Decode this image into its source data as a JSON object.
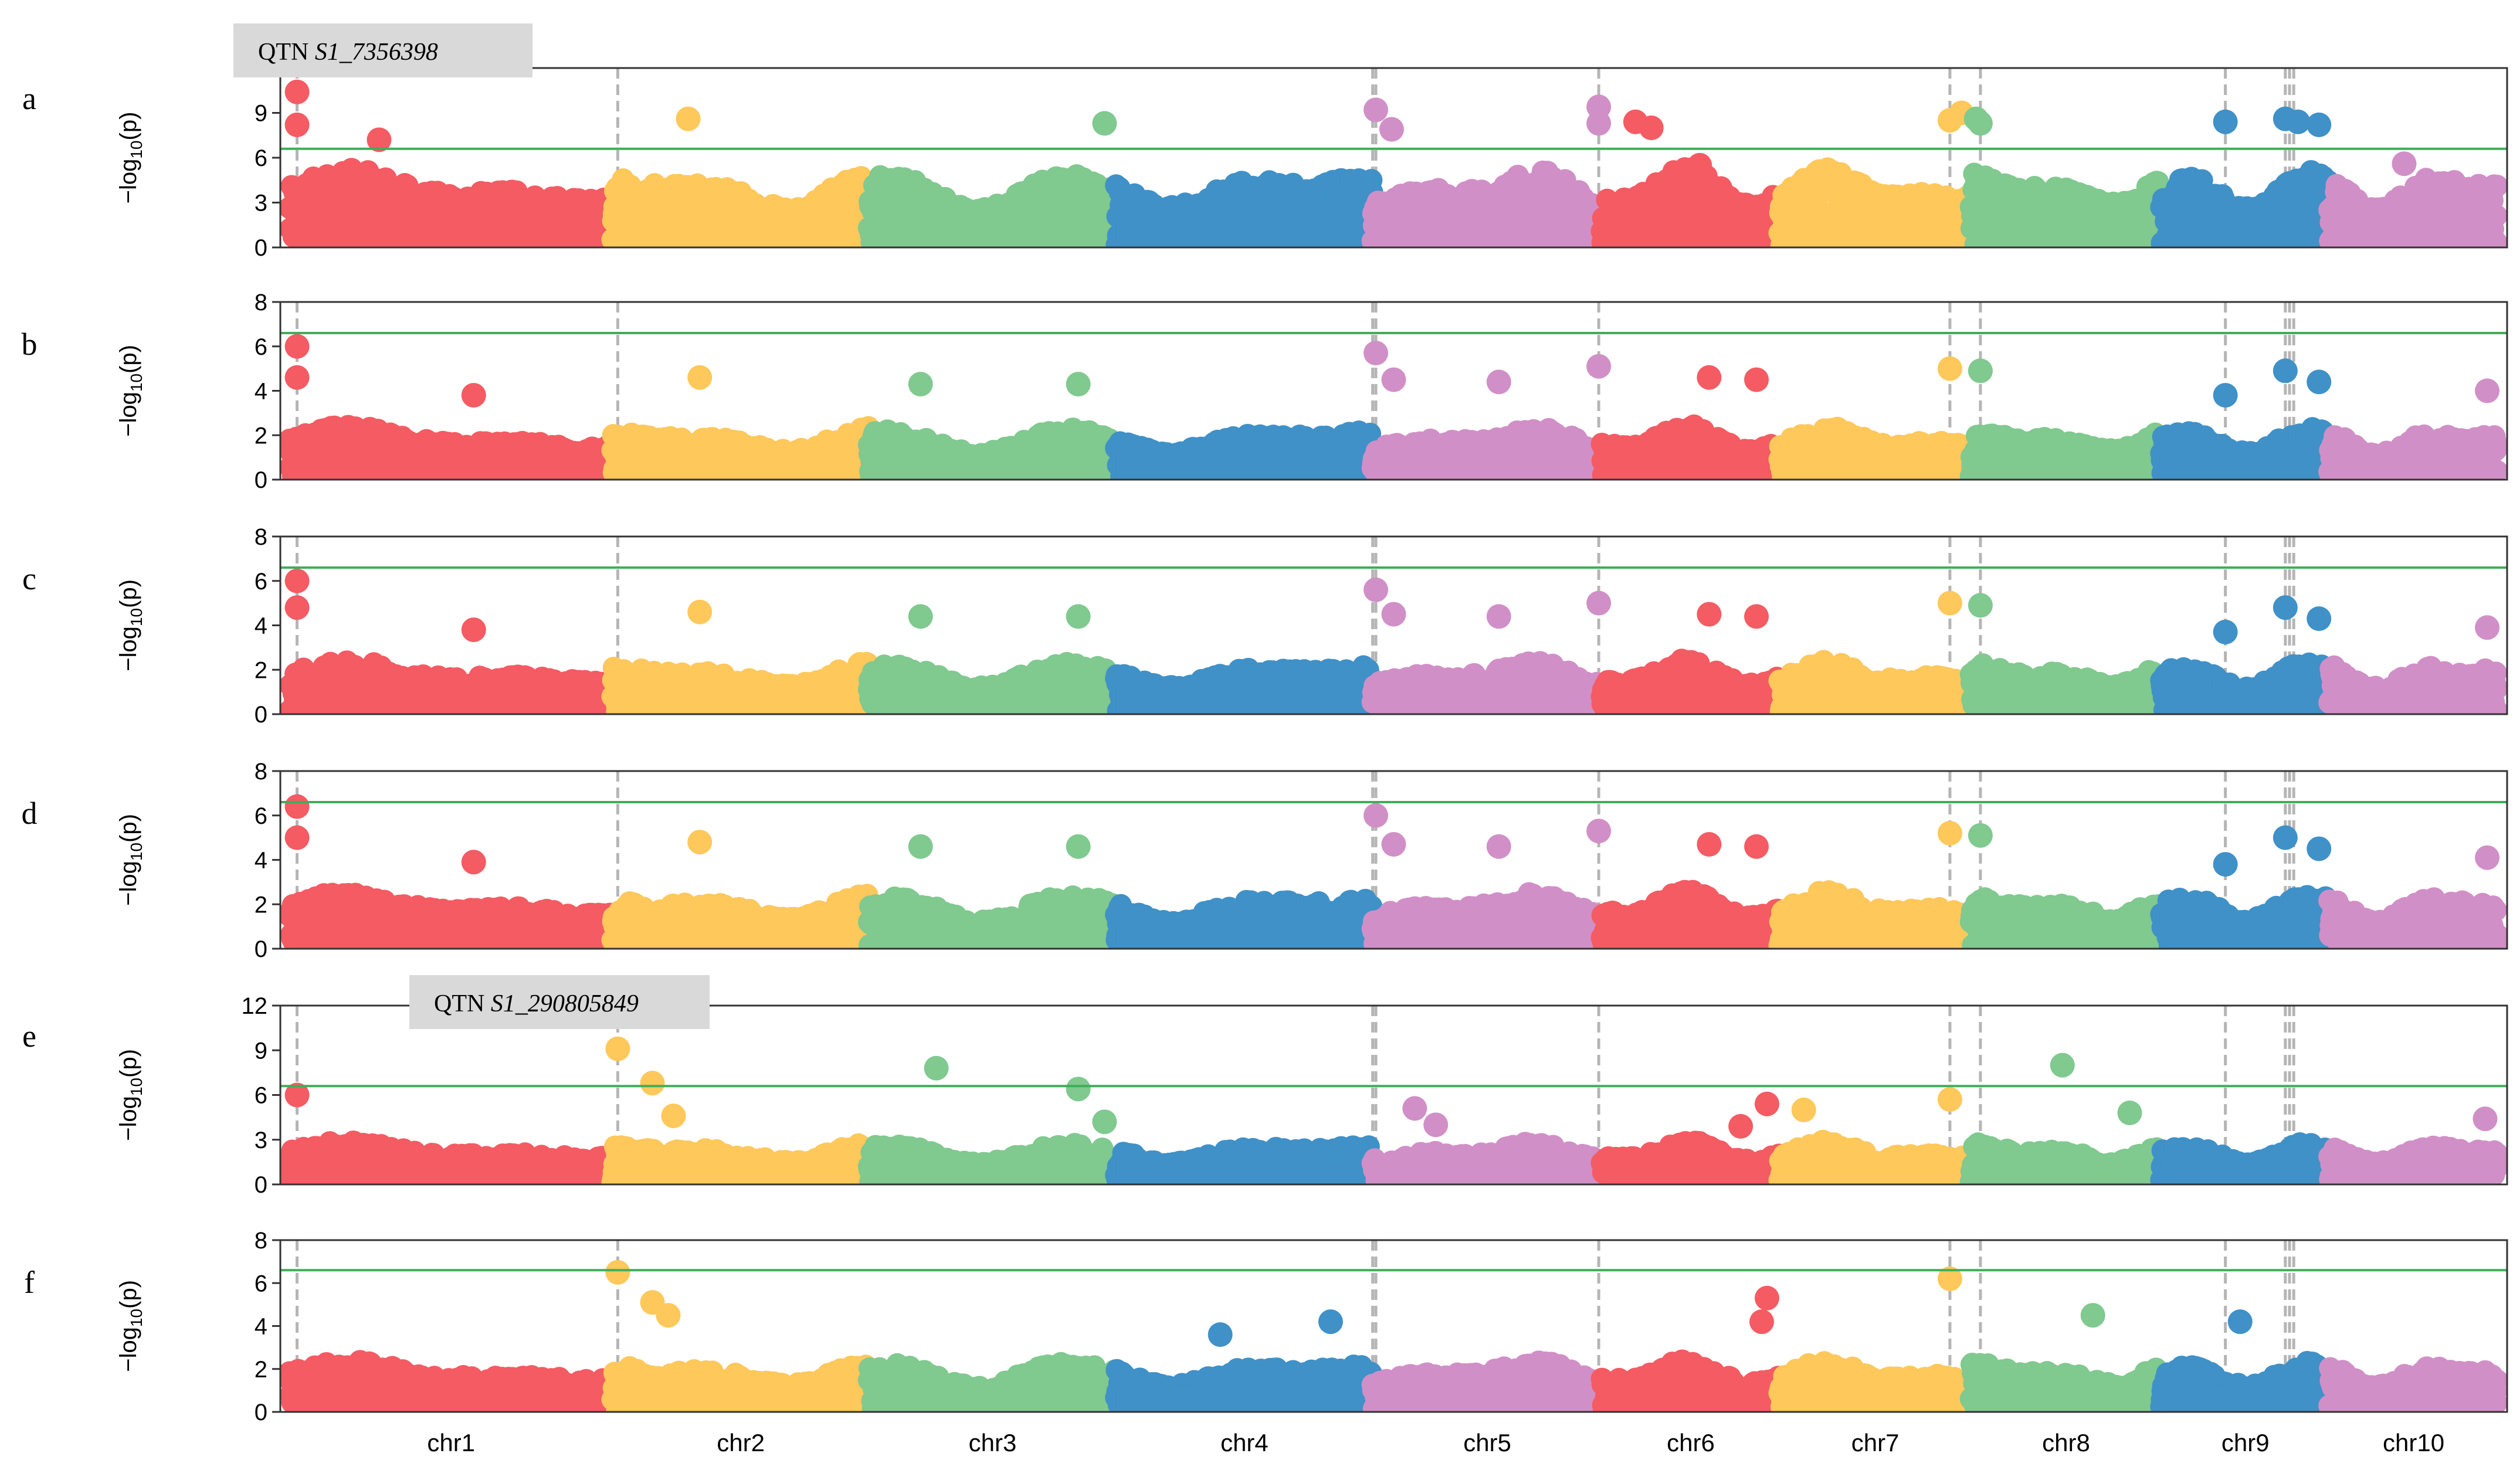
{
  "chart_data": {
    "type": "scatter",
    "subtype": "manhattan",
    "xlabel": "",
    "ylabel_prefix": "−log",
    "ylabel_sub": "10",
    "ylabel_suffix": "(p)",
    "colors": {
      "red": "#f45b63",
      "yellow": "#fec85a",
      "green": "#80c98f",
      "blue": "#3f91c8",
      "pink": "#d18fc7",
      "threshold": "#3fae5a",
      "qtn_line": "#b5b5b5",
      "qtn_box": "#d9d9d9"
    },
    "chromosomes": [
      {
        "name": "chr1",
        "start": 0,
        "end": 307,
        "color": "red"
      },
      {
        "name": "chr2",
        "start": 307,
        "end": 551,
        "color": "yellow"
      },
      {
        "name": "chr3",
        "start": 551,
        "end": 786,
        "color": "green"
      },
      {
        "name": "chr4",
        "start": 786,
        "end": 1030,
        "color": "blue"
      },
      {
        "name": "chr5",
        "start": 1030,
        "end": 1248,
        "color": "pink"
      },
      {
        "name": "chr6",
        "start": 1248,
        "end": 1417,
        "color": "red"
      },
      {
        "name": "chr7",
        "start": 1417,
        "end": 1599,
        "color": "yellow"
      },
      {
        "name": "chr8",
        "start": 1599,
        "end": 1780,
        "color": "green"
      },
      {
        "name": "chr9",
        "start": 1780,
        "end": 1940,
        "color": "blue"
      },
      {
        "name": "chr10",
        "start": 1940,
        "end": 2100,
        "color": "pink"
      }
    ],
    "qtn_positions": [
      7,
      312,
      1030,
      1033,
      1245,
      1579,
      1608,
      1841,
      1898,
      1902,
      1906
    ],
    "panels": [
      {
        "label": "a",
        "ylim": [
          0,
          12
        ],
        "yticks": [
          "0",
          "3",
          "6",
          "9",
          "12"
        ],
        "threshold": 6.6,
        "qtn_label_prefix": "QTN ",
        "qtn_label_id": "S1_7356398",
        "bg_scale": 1.0,
        "peaks": [
          {
            "x": 7,
            "y": 10.4
          },
          {
            "x": 7,
            "y": 8.2
          },
          {
            "x": 85,
            "y": 7.2
          },
          {
            "x": 379,
            "y": 8.6
          },
          {
            "x": 775,
            "y": 8.3
          },
          {
            "x": 1033,
            "y": 9.2
          },
          {
            "x": 1048,
            "y": 7.9
          },
          {
            "x": 1245,
            "y": 9.4
          },
          {
            "x": 1245,
            "y": 8.3
          },
          {
            "x": 1280,
            "y": 8.4
          },
          {
            "x": 1295,
            "y": 8.0
          },
          {
            "x": 1341,
            "y": 5.5
          },
          {
            "x": 1579,
            "y": 8.5
          },
          {
            "x": 1590,
            "y": 9.0
          },
          {
            "x": 1604,
            "y": 8.6
          },
          {
            "x": 1608,
            "y": 8.3
          },
          {
            "x": 1841,
            "y": 8.4
          },
          {
            "x": 1898,
            "y": 8.6
          },
          {
            "x": 1910,
            "y": 8.4
          },
          {
            "x": 1930,
            "y": 8.2
          },
          {
            "x": 2011,
            "y": 5.6
          }
        ]
      },
      {
        "label": "b",
        "ylim": [
          0,
          8
        ],
        "yticks": [
          "0",
          "2",
          "4",
          "6",
          "8"
        ],
        "threshold": 6.6,
        "bg_scale": 0.62,
        "peaks": [
          {
            "x": 7,
            "y": 6.0
          },
          {
            "x": 7,
            "y": 4.6
          },
          {
            "x": 175,
            "y": 3.8
          },
          {
            "x": 390,
            "y": 4.6
          },
          {
            "x": 600,
            "y": 4.3
          },
          {
            "x": 750,
            "y": 4.3
          },
          {
            "x": 1033,
            "y": 5.7
          },
          {
            "x": 1050,
            "y": 4.5
          },
          {
            "x": 1150,
            "y": 4.4
          },
          {
            "x": 1245,
            "y": 5.1
          },
          {
            "x": 1350,
            "y": 4.6
          },
          {
            "x": 1395,
            "y": 4.5
          },
          {
            "x": 1579,
            "y": 5.0
          },
          {
            "x": 1608,
            "y": 4.9
          },
          {
            "x": 1841,
            "y": 3.8
          },
          {
            "x": 1898,
            "y": 4.9
          },
          {
            "x": 1930,
            "y": 4.4
          },
          {
            "x": 2090,
            "y": 4.0
          }
        ]
      },
      {
        "label": "c",
        "ylim": [
          0,
          8
        ],
        "yticks": [
          "0",
          "2",
          "4",
          "6",
          "8"
        ],
        "threshold": 6.6,
        "bg_scale": 0.62,
        "peaks": [
          {
            "x": 7,
            "y": 6.0
          },
          {
            "x": 7,
            "y": 4.8
          },
          {
            "x": 175,
            "y": 3.8
          },
          {
            "x": 390,
            "y": 4.6
          },
          {
            "x": 600,
            "y": 4.4
          },
          {
            "x": 750,
            "y": 4.4
          },
          {
            "x": 1033,
            "y": 5.6
          },
          {
            "x": 1050,
            "y": 4.5
          },
          {
            "x": 1150,
            "y": 4.4
          },
          {
            "x": 1245,
            "y": 5.0
          },
          {
            "x": 1350,
            "y": 4.5
          },
          {
            "x": 1395,
            "y": 4.4
          },
          {
            "x": 1579,
            "y": 5.0
          },
          {
            "x": 1608,
            "y": 4.9
          },
          {
            "x": 1841,
            "y": 3.7
          },
          {
            "x": 1898,
            "y": 4.8
          },
          {
            "x": 1930,
            "y": 4.3
          },
          {
            "x": 2090,
            "y": 3.9
          }
        ]
      },
      {
        "label": "d",
        "ylim": [
          0,
          8
        ],
        "yticks": [
          "0",
          "2",
          "4",
          "6",
          "8"
        ],
        "threshold": 6.6,
        "bg_scale": 0.66,
        "peaks": [
          {
            "x": 7,
            "y": 6.4
          },
          {
            "x": 7,
            "y": 5.0
          },
          {
            "x": 175,
            "y": 3.9
          },
          {
            "x": 390,
            "y": 4.8
          },
          {
            "x": 600,
            "y": 4.6
          },
          {
            "x": 750,
            "y": 4.6
          },
          {
            "x": 1033,
            "y": 6.0
          },
          {
            "x": 1050,
            "y": 4.7
          },
          {
            "x": 1150,
            "y": 4.6
          },
          {
            "x": 1245,
            "y": 5.3
          },
          {
            "x": 1350,
            "y": 4.7
          },
          {
            "x": 1395,
            "y": 4.6
          },
          {
            "x": 1579,
            "y": 5.2
          },
          {
            "x": 1608,
            "y": 5.1
          },
          {
            "x": 1841,
            "y": 3.8
          },
          {
            "x": 1898,
            "y": 5.0
          },
          {
            "x": 1930,
            "y": 4.5
          },
          {
            "x": 2090,
            "y": 4.1
          }
        ]
      },
      {
        "label": "e",
        "ylim": [
          0,
          12
        ],
        "yticks": [
          "0",
          "3",
          "6",
          "9",
          "12"
        ],
        "threshold": 6.6,
        "qtn_label_prefix": "QTN ",
        "qtn_label_id": "S1_290805849",
        "bg_scale": 0.55,
        "peaks": [
          {
            "x": 7,
            "y": 6.0
          },
          {
            "x": 312,
            "y": 9.1
          },
          {
            "x": 345,
            "y": 6.8
          },
          {
            "x": 365,
            "y": 4.6
          },
          {
            "x": 615,
            "y": 7.8
          },
          {
            "x": 750,
            "y": 6.4
          },
          {
            "x": 775,
            "y": 4.2
          },
          {
            "x": 1070,
            "y": 5.1
          },
          {
            "x": 1090,
            "y": 4.0
          },
          {
            "x": 1380,
            "y": 3.9
          },
          {
            "x": 1405,
            "y": 5.4
          },
          {
            "x": 1440,
            "y": 5.0
          },
          {
            "x": 1579,
            "y": 5.7
          },
          {
            "x": 1686,
            "y": 8.0
          },
          {
            "x": 1750,
            "y": 4.8
          },
          {
            "x": 2088,
            "y": 4.4
          }
        ]
      },
      {
        "label": "f",
        "ylim": [
          0,
          8
        ],
        "yticks": [
          "0",
          "2",
          "4",
          "6",
          "8"
        ],
        "threshold": 6.6,
        "bg_scale": 0.62,
        "peaks": [
          {
            "x": 312,
            "y": 6.5
          },
          {
            "x": 345,
            "y": 5.1
          },
          {
            "x": 360,
            "y": 4.5
          },
          {
            "x": 885,
            "y": 3.6
          },
          {
            "x": 990,
            "y": 4.2
          },
          {
            "x": 1405,
            "y": 5.3
          },
          {
            "x": 1400,
            "y": 4.2
          },
          {
            "x": 1579,
            "y": 6.2
          },
          {
            "x": 1715,
            "y": 4.5
          },
          {
            "x": 1855,
            "y": 4.2
          }
        ]
      }
    ]
  }
}
